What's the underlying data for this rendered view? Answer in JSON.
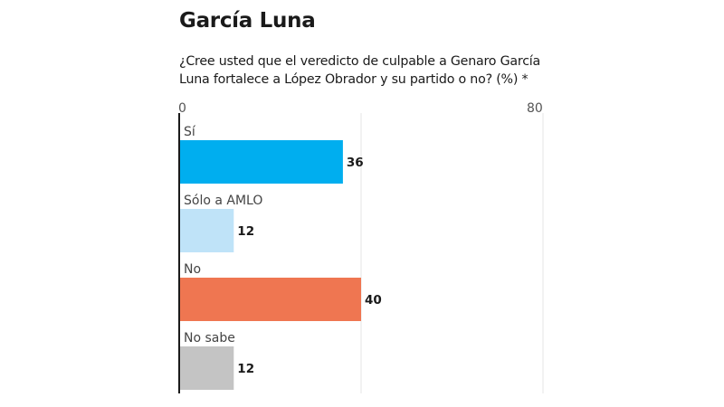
{
  "header": {
    "title": "García Luna",
    "subtitle": "¿Cree usted que el veredicto de culpable a Genaro García Luna fortalece a López Obrador y su partido o no? (%) *"
  },
  "chart_data": {
    "type": "bar",
    "orientation": "horizontal",
    "title": "García Luna",
    "subtitle": "¿Cree usted que el veredicto de culpable a Genaro García Luna fortalece a López Obrador y su partido o no? (%) *",
    "xlabel": "",
    "ylabel": "",
    "categories": [
      "Sí",
      "Sólo a AMLO",
      "No",
      "No sabe"
    ],
    "values": [
      36,
      12,
      40,
      12
    ],
    "colors": [
      "#00aeef",
      "#bfe3f8",
      "#ef7651",
      "#c4c4c4"
    ],
    "xlim": [
      0,
      80
    ],
    "ticks": [
      0,
      40,
      80
    ],
    "tick_labels": [
      "0",
      "",
      "80"
    ],
    "grid": true,
    "legend": "none",
    "value_labels": [
      "36",
      "12",
      "40",
      "12"
    ]
  }
}
